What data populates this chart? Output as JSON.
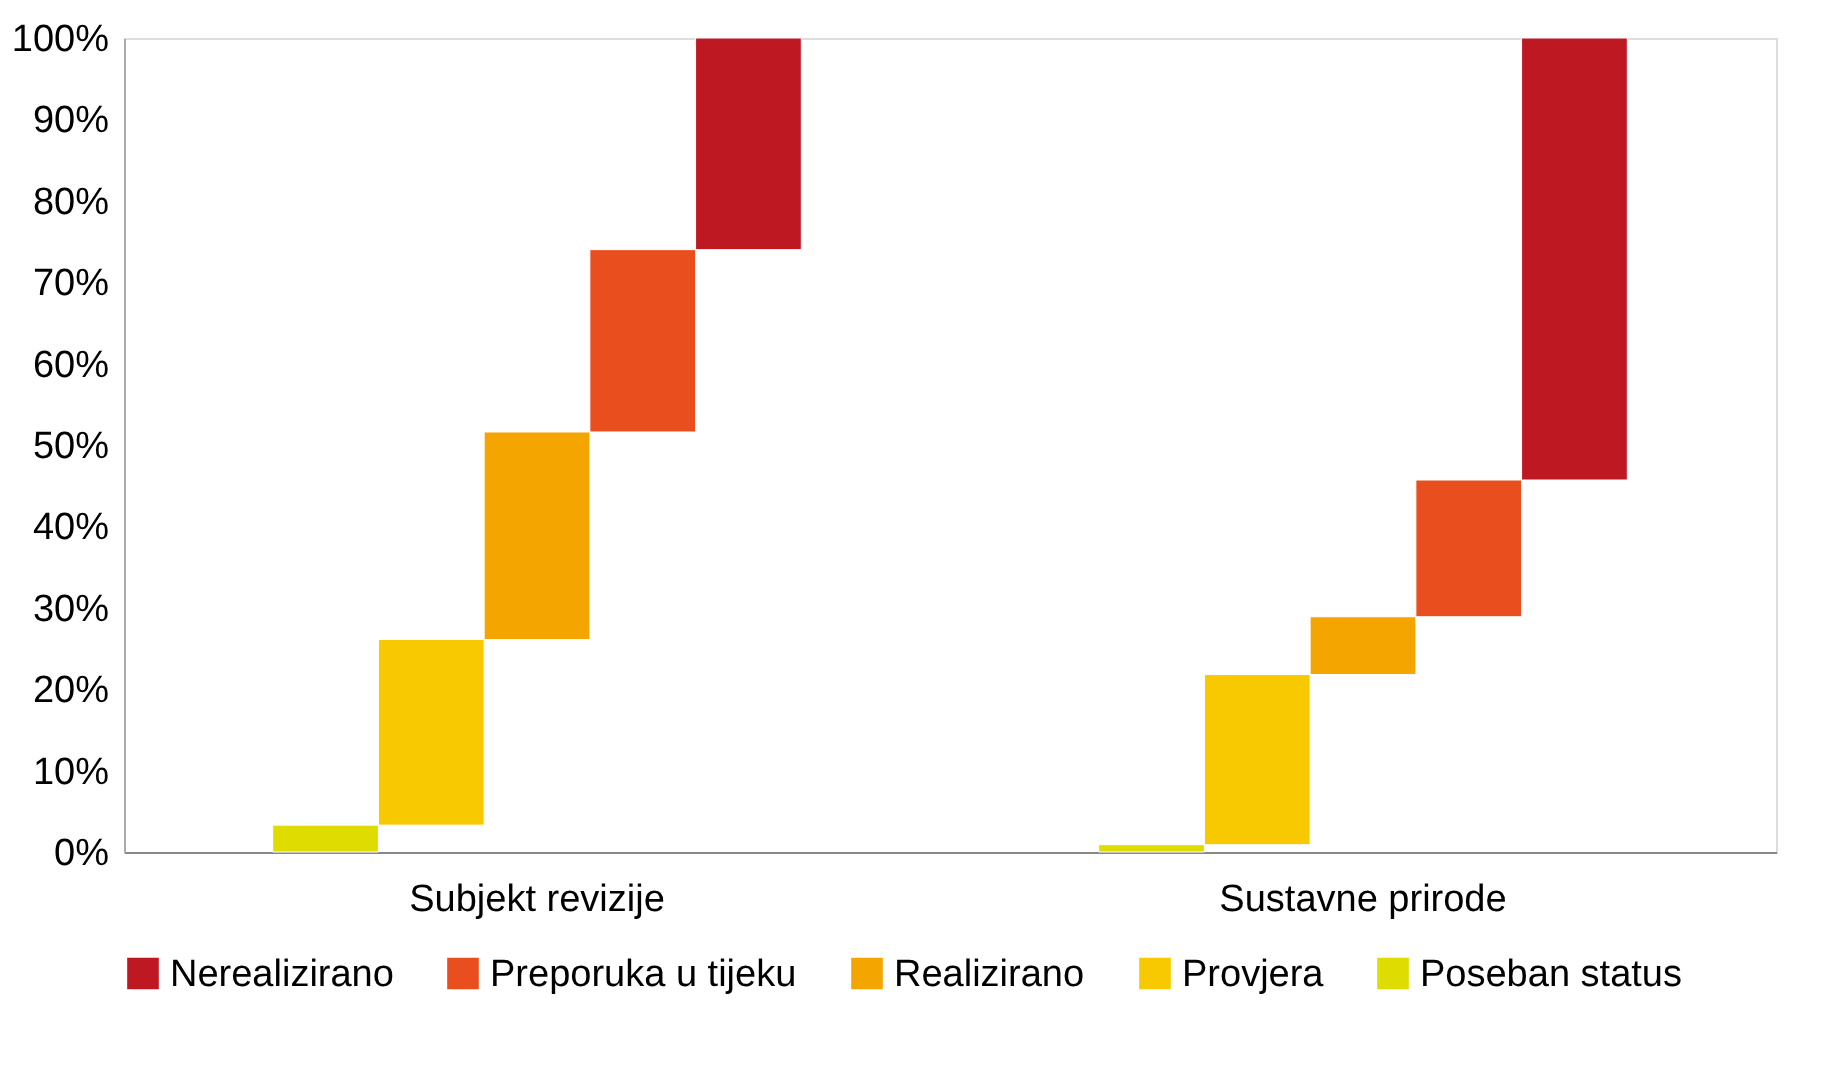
{
  "chart_data": {
    "type": "bar",
    "categories": [
      "Subjekt revizije",
      "Sustavne prirode"
    ],
    "series": [
      {
        "name": "Poseban status",
        "color": "#dedc00",
        "values": [
          3.3,
          0.9
        ],
        "base": [
          0,
          0
        ]
      },
      {
        "name": "Provjera",
        "color": "#f9c900",
        "values": [
          22.8,
          20.9
        ],
        "base": [
          3.3,
          0.9
        ]
      },
      {
        "name": "Realizirano",
        "color": "#f5a500",
        "values": [
          25.5,
          7.1
        ],
        "base": [
          26.1,
          21.8
        ]
      },
      {
        "name": "Preporuka u tijeku",
        "color": "#e94e1e",
        "values": [
          22.4,
          16.8
        ],
        "base": [
          51.6,
          28.9
        ]
      },
      {
        "name": "Nerealizirano",
        "color": "#be1823",
        "values": [
          26.0,
          54.3
        ],
        "base": [
          74.0,
          45.7
        ]
      }
    ],
    "ylim": [
      0,
      100
    ],
    "yticks": [
      {
        "value": 0,
        "label": "0%"
      },
      {
        "value": 10,
        "label": "10%"
      },
      {
        "value": 20,
        "label": "20%"
      },
      {
        "value": 30,
        "label": "30%"
      },
      {
        "value": 40,
        "label": "40%"
      },
      {
        "value": 50,
        "label": "50%"
      },
      {
        "value": 60,
        "label": "60%"
      },
      {
        "value": 70,
        "label": "70%"
      },
      {
        "value": 80,
        "label": "80%"
      },
      {
        "value": 90,
        "label": "90%"
      },
      {
        "value": 100,
        "label": "100%"
      }
    ],
    "grid": false,
    "legend": "bottom"
  }
}
